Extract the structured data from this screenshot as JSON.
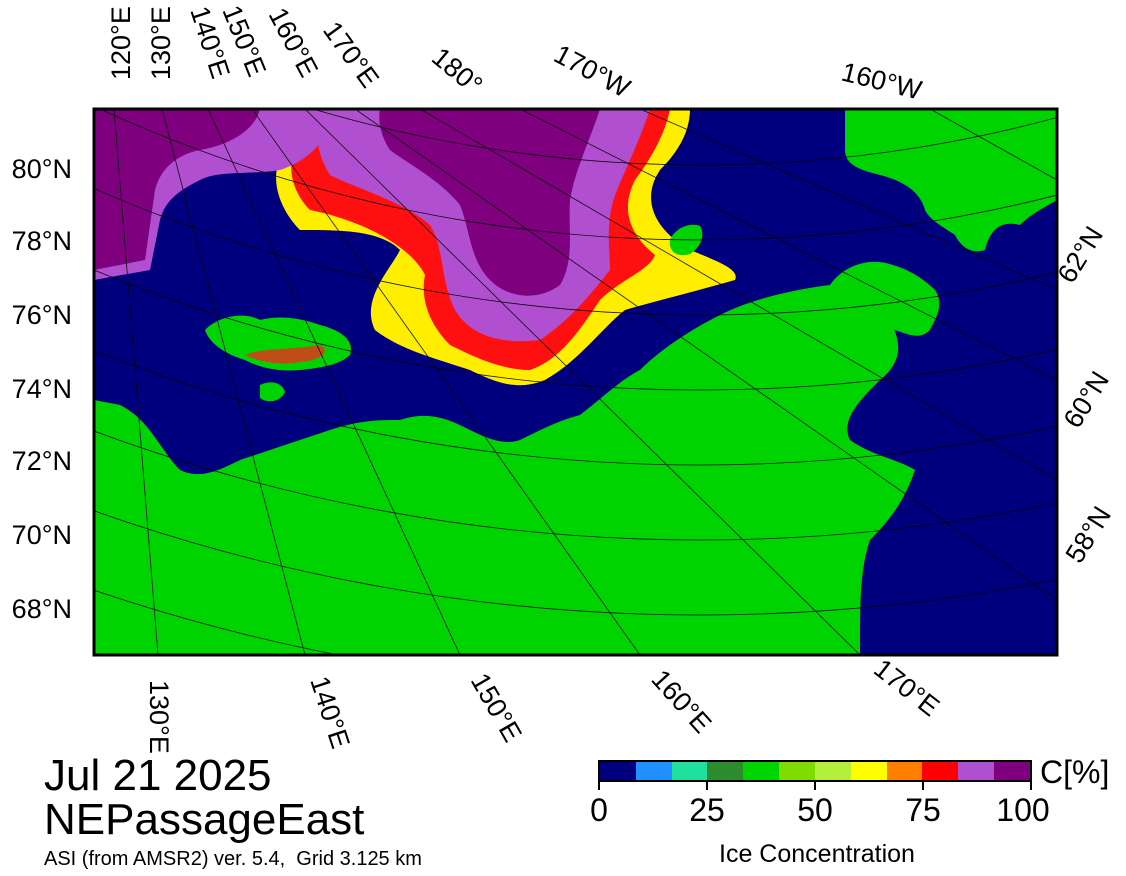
{
  "date": "Jul 21 2025",
  "region": "NEPassageEast",
  "product": "ASI (from AMSR2) ver. 5.4,  Grid 3.125 km",
  "colors": {
    "ocean": "#00007f",
    "land": "#00d400",
    "ice_high": "#7f007f",
    "ice_mid": "#b050d0",
    "ice_edge": "#ff0000",
    "ice_low": "#ffff00"
  },
  "top_longitude_labels": [
    "120°E",
    "130°E",
    "140°E",
    "150°E",
    "160°E",
    "170°E",
    "180°",
    "170°W",
    "160°W"
  ],
  "bottom_longitude_labels": [
    "130°E",
    "140°E",
    "150°E",
    "160°E",
    "170°E"
  ],
  "left_latitude_labels": [
    "80°N",
    "78°N",
    "76°N",
    "74°N",
    "72°N",
    "70°N",
    "68°N"
  ],
  "right_latitude_labels": [
    "62°N",
    "60°N",
    "58°N"
  ],
  "colorbar": {
    "unit": "C[%]",
    "title": "Ice Concentration",
    "ticks": [
      0,
      25,
      50,
      75,
      100
    ],
    "colors": [
      "#00007f",
      "#1e90ff",
      "#20e0a0",
      "#2e8b2e",
      "#00d400",
      "#7fdc00",
      "#b4ef3c",
      "#ffff00",
      "#ff8000",
      "#ff0000",
      "#b050d0",
      "#7f007f"
    ]
  }
}
